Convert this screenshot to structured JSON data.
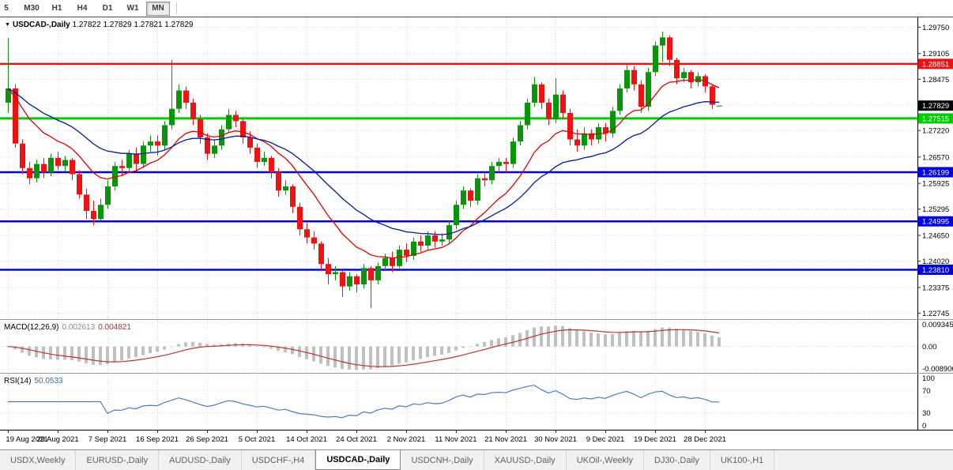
{
  "chart_ui": {
    "collapse_glyph": "▼"
  },
  "toolbar": {
    "periods": [
      {
        "label": "5",
        "active": false
      },
      {
        "label": "M30",
        "active": false
      },
      {
        "label": "H1",
        "active": false
      },
      {
        "label": "H4",
        "active": false
      },
      {
        "label": "D1",
        "active": false
      },
      {
        "label": "W1",
        "active": false
      },
      {
        "label": "MN",
        "active": true
      }
    ]
  },
  "tabs": {
    "items": [
      {
        "label": "USDX,Weekly",
        "active": false
      },
      {
        "label": "EURUSD-,Daily",
        "active": false
      },
      {
        "label": "AUDUSD-,Daily",
        "active": false
      },
      {
        "label": "USDCHF-,H4",
        "active": false
      },
      {
        "label": "USDCAD-,Daily",
        "active": true
      },
      {
        "label": "USDCNH-,Daily",
        "active": false
      },
      {
        "label": "XAUUSD-,Daily",
        "active": false
      },
      {
        "label": "UKOil-,Weekly",
        "active": false
      },
      {
        "label": "DJ30-,Daily",
        "active": false
      },
      {
        "label": "UK100-,H1",
        "active": false
      }
    ]
  },
  "chart_data": {
    "type": "candlestick",
    "symbol": "USDCAD-,Daily",
    "ohlc_readout": "1.27822 1.27829 1.27821 1.27829",
    "bars_per_tick": 7,
    "x_tick_labels": [
      "19 Aug 2021",
      "29 Aug 2021",
      "7 Sep 2021",
      "16 Sep 2021",
      "26 Sep 2021",
      "5 Oct 2021",
      "14 Oct 2021",
      "24 Oct 2021",
      "2 Nov 2021",
      "11 Nov 2021",
      "21 Nov 2021",
      "30 Nov 2021",
      "9 Dec 2021",
      "19 Dec 2021",
      "28 Dec 2021"
    ],
    "price_axis_ticks": [
      {
        "label": "1.29750",
        "value": 1.2975,
        "show": true
      },
      {
        "label": "1.29105",
        "value": 1.29105,
        "show": true
      },
      {
        "label": "1.28475",
        "value": 1.28475,
        "show": true
      },
      {
        "label": "1.27845",
        "value": 1.27845,
        "show": false
      },
      {
        "label": "1.27220",
        "value": 1.2722,
        "show": true
      },
      {
        "label": "1.26570",
        "value": 1.2657,
        "show": true
      },
      {
        "label": "1.25925",
        "value": 1.25925,
        "show": true
      },
      {
        "label": "1.25295",
        "value": 1.25295,
        "show": true
      },
      {
        "label": "1.24650",
        "value": 1.2465,
        "show": true
      },
      {
        "label": "1.24020",
        "value": 1.2402,
        "show": true
      },
      {
        "label": "1.23375",
        "value": 1.23375,
        "show": true
      },
      {
        "label": "1.22745",
        "value": 1.22745,
        "show": true
      }
    ],
    "hlines": [
      {
        "value": 1.28851,
        "label": "1.28851",
        "color": "#ee1111",
        "line_width": 2.5
      },
      {
        "value": 1.27515,
        "label": "1.27515",
        "color": "#00cc00",
        "line_width": 3
      },
      {
        "value": 1.26199,
        "label": "1.26199",
        "color": "#0000e0",
        "line_width": 2.5
      },
      {
        "value": 1.24995,
        "label": "1.24995",
        "color": "#0000e0",
        "line_width": 2.5
      },
      {
        "value": 1.2381,
        "label": "1.23810",
        "color": "#0000e0",
        "line_width": 2.5
      }
    ],
    "bid_badge": {
      "value": 1.27829,
      "label": "1.27829",
      "color": "#000000"
    },
    "ma_overlays": [
      {
        "name": "EMA fast",
        "period": 12,
        "color": "#e00000"
      },
      {
        "name": "EMA slow",
        "period": 26,
        "color": "#001b9b"
      }
    ],
    "macd": {
      "name": "MACD(12,26,9)",
      "fast": 12,
      "slow": 26,
      "signal": 9,
      "value_main": "0.002613",
      "value_signal": "0.004821",
      "axis": [
        {
          "label": "0.009345",
          "value": 0.009345
        },
        {
          "label": "0.00",
          "value": 0
        },
        {
          "label": "-0.008900",
          "value": -0.0089
        }
      ]
    },
    "rsi": {
      "name": "RSI(14)",
      "period": 14,
      "value": "50.0533",
      "axis": [
        {
          "label": "100",
          "value": 100,
          "grid": false
        },
        {
          "label": "70",
          "value": 70,
          "grid": true
        },
        {
          "label": "30",
          "value": 30,
          "grid": true
        },
        {
          "label": "0",
          "value": 0,
          "grid": false
        }
      ]
    },
    "colors": {
      "up": "#089508",
      "down": "#f01111",
      "grid": "#dadada",
      "macd_hist": "#c0c0c0",
      "macd_signal": "#c03030",
      "rsi_line": "#4a7ebb",
      "axis_text": "#000000",
      "badge_text": "#ffffff"
    },
    "ohlc": [
      [
        1.279,
        1.2949,
        1.2765,
        1.2825
      ],
      [
        1.2825,
        1.2835,
        1.268,
        1.269
      ],
      [
        1.269,
        1.27,
        1.2615,
        1.263
      ],
      [
        1.263,
        1.2645,
        1.259,
        1.2605
      ],
      [
        1.2605,
        1.265,
        1.2595,
        1.264
      ],
      [
        1.264,
        1.2655,
        1.2605,
        1.262
      ],
      [
        1.262,
        1.2665,
        1.261,
        1.2655
      ],
      [
        1.2655,
        1.267,
        1.2625,
        1.2635
      ],
      [
        1.2635,
        1.266,
        1.262,
        1.265
      ],
      [
        1.265,
        1.2655,
        1.26,
        1.2615
      ],
      [
        1.2615,
        1.2625,
        1.2555,
        1.2565
      ],
      [
        1.2565,
        1.258,
        1.2505,
        1.2525
      ],
      [
        1.2525,
        1.255,
        1.249,
        1.2505
      ],
      [
        1.2505,
        1.2555,
        1.25,
        1.254
      ],
      [
        1.254,
        1.26,
        1.253,
        1.2585
      ],
      [
        1.2585,
        1.2645,
        1.2575,
        1.2635
      ],
      [
        1.2635,
        1.265,
        1.261,
        1.263
      ],
      [
        1.263,
        1.2675,
        1.262,
        1.2665
      ],
      [
        1.2665,
        1.268,
        1.2625,
        1.264
      ],
      [
        1.264,
        1.2695,
        1.263,
        1.2685
      ],
      [
        1.2685,
        1.271,
        1.267,
        1.2695
      ],
      [
        1.2695,
        1.271,
        1.266,
        1.2685
      ],
      [
        1.2685,
        1.2745,
        1.2675,
        1.2735
      ],
      [
        1.2735,
        1.2895,
        1.2725,
        1.2775
      ],
      [
        1.2775,
        1.2835,
        1.2765,
        1.282
      ],
      [
        1.282,
        1.283,
        1.2775,
        1.279
      ],
      [
        1.279,
        1.28,
        1.2735,
        1.275
      ],
      [
        1.275,
        1.276,
        1.269,
        1.2705
      ],
      [
        1.2705,
        1.2715,
        1.265,
        1.2665
      ],
      [
        1.2665,
        1.27,
        1.2655,
        1.2685
      ],
      [
        1.2685,
        1.2735,
        1.2675,
        1.2725
      ],
      [
        1.2725,
        1.2775,
        1.2715,
        1.276
      ],
      [
        1.276,
        1.277,
        1.273,
        1.2745
      ],
      [
        1.2745,
        1.275,
        1.269,
        1.2705
      ],
      [
        1.2705,
        1.272,
        1.2665,
        1.268
      ],
      [
        1.268,
        1.269,
        1.263,
        1.2645
      ],
      [
        1.2645,
        1.267,
        1.2635,
        1.2655
      ],
      [
        1.2655,
        1.266,
        1.2605,
        1.262
      ],
      [
        1.262,
        1.263,
        1.256,
        1.2575
      ],
      [
        1.2575,
        1.26,
        1.2565,
        1.2585
      ],
      [
        1.2585,
        1.259,
        1.252,
        1.2535
      ],
      [
        1.2535,
        1.2545,
        1.2465,
        1.248
      ],
      [
        1.248,
        1.2495,
        1.2445,
        1.246
      ],
      [
        1.246,
        1.2475,
        1.243,
        1.2445
      ],
      [
        1.2445,
        1.245,
        1.238,
        1.2395
      ],
      [
        1.2395,
        1.241,
        1.2345,
        1.237
      ],
      [
        1.237,
        1.239,
        1.2355,
        1.2375
      ],
      [
        1.2375,
        1.238,
        1.2315,
        1.234
      ],
      [
        1.234,
        1.2375,
        1.233,
        1.2365
      ],
      [
        1.2365,
        1.237,
        1.2325,
        1.2345
      ],
      [
        1.2345,
        1.2395,
        1.2335,
        1.2385
      ],
      [
        1.2385,
        1.239,
        1.2287,
        1.2355
      ],
      [
        1.2355,
        1.2398,
        1.2345,
        1.239
      ],
      [
        1.239,
        1.242,
        1.238,
        1.241
      ],
      [
        1.241,
        1.2425,
        1.2375,
        1.239
      ],
      [
        1.239,
        1.244,
        1.2385,
        1.243
      ],
      [
        1.243,
        1.2445,
        1.24,
        1.2415
      ],
      [
        1.2415,
        1.246,
        1.2405,
        1.245
      ],
      [
        1.245,
        1.2465,
        1.2425,
        1.244
      ],
      [
        1.244,
        1.2475,
        1.243,
        1.2465
      ],
      [
        1.2465,
        1.2475,
        1.2435,
        1.245
      ],
      [
        1.245,
        1.247,
        1.244,
        1.2455
      ],
      [
        1.2455,
        1.25,
        1.2445,
        1.249
      ],
      [
        1.249,
        1.255,
        1.248,
        1.254
      ],
      [
        1.254,
        1.2585,
        1.253,
        1.2575
      ],
      [
        1.2575,
        1.258,
        1.2535,
        1.255
      ],
      [
        1.255,
        1.2615,
        1.254,
        1.2605
      ],
      [
        1.2605,
        1.262,
        1.2585,
        1.26
      ],
      [
        1.26,
        1.2645,
        1.259,
        1.2635
      ],
      [
        1.2635,
        1.2655,
        1.262,
        1.2645
      ],
      [
        1.2645,
        1.2655,
        1.262,
        1.264
      ],
      [
        1.264,
        1.2705,
        1.263,
        1.2695
      ],
      [
        1.2695,
        1.2745,
        1.2685,
        1.2735
      ],
      [
        1.2735,
        1.28,
        1.2725,
        1.279
      ],
      [
        1.279,
        1.2853,
        1.278,
        1.2835
      ],
      [
        1.2835,
        1.284,
        1.2775,
        1.279
      ],
      [
        1.279,
        1.28,
        1.2735,
        1.275
      ],
      [
        1.275,
        1.285,
        1.274,
        1.281
      ],
      [
        1.281,
        1.282,
        1.275,
        1.2765
      ],
      [
        1.2765,
        1.2775,
        1.2685,
        1.27
      ],
      [
        1.27,
        1.2725,
        1.267,
        1.2685
      ],
      [
        1.2685,
        1.273,
        1.2675,
        1.2715
      ],
      [
        1.2715,
        1.2725,
        1.2685,
        1.27
      ],
      [
        1.27,
        1.274,
        1.269,
        1.273
      ],
      [
        1.273,
        1.274,
        1.2695,
        1.2715
      ],
      [
        1.2715,
        1.278,
        1.2705,
        1.277
      ],
      [
        1.277,
        1.2835,
        1.276,
        1.2825
      ],
      [
        1.2825,
        1.2885,
        1.2815,
        1.287
      ],
      [
        1.287,
        1.288,
        1.282,
        1.2835
      ],
      [
        1.2835,
        1.2845,
        1.2765,
        1.278
      ],
      [
        1.278,
        1.2875,
        1.277,
        1.2865
      ],
      [
        1.2865,
        1.294,
        1.2855,
        1.293
      ],
      [
        1.293,
        1.2964,
        1.289,
        1.295
      ],
      [
        1.295,
        1.2955,
        1.288,
        1.2895
      ],
      [
        1.2895,
        1.29,
        1.2835,
        1.285
      ],
      [
        1.285,
        1.2875,
        1.284,
        1.2865
      ],
      [
        1.2865,
        1.287,
        1.2825,
        1.284
      ],
      [
        1.284,
        1.2865,
        1.283,
        1.2855
      ],
      [
        1.2855,
        1.286,
        1.2815,
        1.283
      ],
      [
        1.283,
        1.2835,
        1.2775,
        1.2785
      ],
      [
        1.27822,
        1.27829,
        1.27821,
        1.27829
      ]
    ]
  }
}
